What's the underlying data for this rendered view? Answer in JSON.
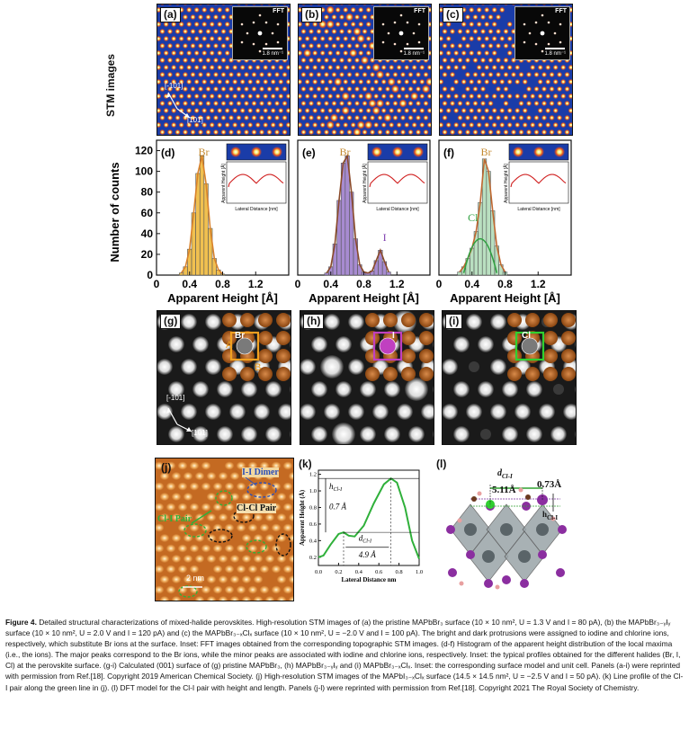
{
  "row1": {
    "ylabel": "STM images",
    "panels": [
      {
        "label": "(a)",
        "fft_title": "FFT",
        "fft_scale": "1.8 nm⁻¹",
        "dir1": "[-101]",
        "dir2": "[101]"
      },
      {
        "label": "(b)",
        "fft_title": "FFT",
        "fft_scale": "1.8 nm⁻¹"
      },
      {
        "label": "(c)",
        "fft_title": "FFT",
        "fft_scale": "1.8 nm⁻¹"
      }
    ]
  },
  "row2": {
    "ylabel": "Number of counts",
    "xlabel": "Apparent Height [Å]",
    "inset_ylabel": "Apparent Height [Å]",
    "inset_xlabel": "Lateral Distance [nm]"
  },
  "chart_data": [
    {
      "type": "bar",
      "label": "(d)",
      "peak_label": "Br",
      "xlabel": "Apparent Height [Å]",
      "ylabel": "Number of counts",
      "xlim": [
        0,
        1.6
      ],
      "ylim": [
        0,
        130
      ],
      "xticks": [
        "0",
        "0.4",
        "0.8",
        "1.2"
      ],
      "yticks": [
        "0",
        "20",
        "40",
        "60",
        "80",
        "100",
        "120"
      ],
      "series": [
        {
          "name": "Br",
          "color": "#f0c050",
          "x": [
            0.3,
            0.35,
            0.4,
            0.45,
            0.5,
            0.55,
            0.6,
            0.65,
            0.7,
            0.75,
            0.8
          ],
          "values": [
            2,
            8,
            25,
            60,
            98,
            115,
            88,
            45,
            16,
            5,
            1
          ]
        }
      ]
    },
    {
      "type": "bar",
      "label": "(e)",
      "peak_label": "Br",
      "peak2_label": "I",
      "xlabel": "Apparent Height [Å]",
      "xlim": [
        0,
        1.6
      ],
      "ylim": [
        0,
        130
      ],
      "xticks": [
        "0",
        "0.4",
        "0.8",
        "1.2"
      ],
      "series": [
        {
          "name": "Br",
          "color": "#a78bd0",
          "x": [
            0.35,
            0.4,
            0.45,
            0.5,
            0.55,
            0.6,
            0.65,
            0.7,
            0.75,
            0.8,
            0.85,
            0.9,
            0.95,
            1.0,
            1.05,
            1.1
          ],
          "values": [
            2,
            8,
            30,
            72,
            108,
            115,
            80,
            35,
            10,
            3,
            2,
            4,
            14,
            24,
            13,
            3
          ]
        }
      ]
    },
    {
      "type": "bar",
      "label": "(f)",
      "peak_label": "Br",
      "peak2_label": "Cl",
      "xlabel": "Apparent Height [Å]",
      "xlim": [
        0,
        1.6
      ],
      "ylim": [
        0,
        130
      ],
      "xticks": [
        "0",
        "0.4",
        "0.8",
        "1.2"
      ],
      "series": [
        {
          "name": "Br",
          "color": "#b9dfc0",
          "x": [
            0.25,
            0.3,
            0.35,
            0.4,
            0.45,
            0.5,
            0.55,
            0.6,
            0.65,
            0.7,
            0.75,
            0.8
          ],
          "values": [
            3,
            8,
            16,
            26,
            42,
            70,
            112,
            100,
            62,
            28,
            10,
            3
          ]
        }
      ]
    }
  ],
  "row3": {
    "panels": [
      {
        "label": "(g)",
        "ion": "Br",
        "letter_a": "A",
        "letter_b": "B",
        "dir1": "[-101]",
        "dir2": "[101]"
      },
      {
        "label": "(h)",
        "ion": "I"
      },
      {
        "label": "(i)",
        "ion": "Cl"
      }
    ]
  },
  "row4": {
    "j": {
      "label": "(j)",
      "dimer": "I-I Dimer",
      "pair": "Cl-Cl Pair",
      "clI": "Cl-I Pair",
      "scale": "2 nm"
    },
    "k": {
      "label": "(k)",
      "ylabel": "Apparent Height (Å)",
      "xlabel": "Lateral Distance nm",
      "h_label": "h",
      "h_sub": "Cl-I",
      "h_val": "0.7 Å",
      "d_label": "d",
      "d_sub": "Cl-I",
      "d_val": "4.9 Å",
      "xticks": [
        "0.0",
        "0.2",
        "0.4",
        "0.6",
        "0.8",
        "1.0"
      ],
      "yticks": [
        "0.2",
        "0.4",
        "0.6",
        "0.8",
        "1.0",
        "1.2"
      ]
    },
    "l": {
      "label": "(l)",
      "d_label": "d",
      "d_sub": "Cl-I",
      "d_val": "5.11Å",
      "h_val": "0.73Å",
      "h_label": "h",
      "h_sub": "Cl-I"
    }
  },
  "caption": {
    "bold": "Figure 4.",
    "text": " Detailed structural characterizations of mixed-halide perovskites. High-resolution STM images of (a) the pristine MAPbBr₃ surface (10 × 10 nm², U = 1.3 V and I = 80 pA), (b) the MAPbBr₃₋ᵧIᵧ surface (10 × 10 nm², U = 2.0 V and I = 120 pA) and (c) the MAPbBr₃₋ₓClₓ surface (10 × 10 nm², U = −2.0 V and I = 100 pA). The bright and dark protrusions were assigned to iodine and chlorine ions, respectively, which substitute Br ions at the surface. Inset: FFT images obtained from the corresponding topographic STM images. (d-f) Histogram of the apparent height distribution of the local maxima (i.e., the ions). The major peaks correspond to the Br ions, while the minor peaks are associated with iodine and chlorine ions, respectively. Inset: the typical profiles obtained for the different halides (Br, I, Cl) at the perovskite surface. (g-i) Calculated (001) surface of (g) pristine MAPbBr₃, (h) MAPbBr₃₋ᵧIᵧ and (i) MAPbBr₃₋ₓClₓ. Inset: the corresponding surface model and unit cell. Panels (a-i) were reprinted with permission from Ref.[18]. Copyright 2019 American Chemical Society. (j) High-resolution STM images of the MAPbI₃₋ₓClₓ surface (14.5 × 14.5 nm², U = −2.5 V and I = 50 pA). (k) Line profile of the Cl-I pair along the green line in (j). (l) DFT model for the Cl-I pair with height and length. Panels (j-l) were reprinted with permission from Ref.[18]. Copyright 2021 The Royal Society of Chemistry."
  }
}
